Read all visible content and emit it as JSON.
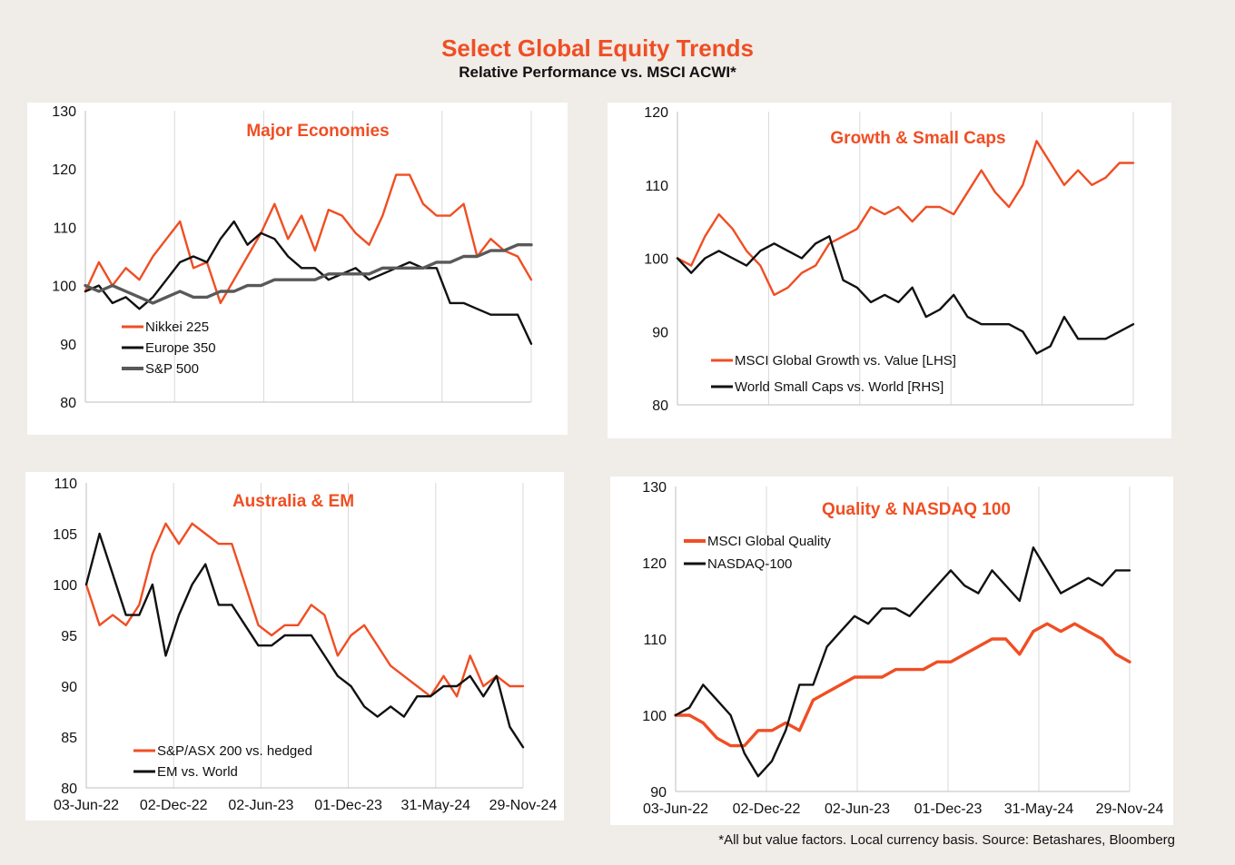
{
  "header": {
    "title": "Select Global Equity Trends",
    "subtitle": "Relative Performance vs. MSCI ACWI*"
  },
  "footnote": "*All but value factors. Local currency basis.  Source: Betashares, Bloomberg",
  "x_tick_labels": [
    "03-Jun-22",
    "02-Dec-22",
    "02-Jun-23",
    "01-Dec-23",
    "31-May-24",
    "29-Nov-24"
  ],
  "colors": {
    "orange": "#f04e23",
    "black": "#111111",
    "gray": "#595959",
    "grid": "#d9d9d9"
  },
  "chart_data": [
    {
      "type": "line",
      "title": "Major Economies",
      "x": [
        "03-Jun-22",
        "01-Jul-22",
        "29-Jul-22",
        "26-Aug-22",
        "23-Sep-22",
        "21-Oct-22",
        "18-Nov-22",
        "16-Dec-22",
        "13-Jan-23",
        "10-Feb-23",
        "10-Mar-23",
        "07-Apr-23",
        "05-May-23",
        "02-Jun-23",
        "30-Jun-23",
        "28-Jul-23",
        "25-Aug-23",
        "22-Sep-23",
        "20-Oct-23",
        "17-Nov-23",
        "15-Dec-23",
        "12-Jan-24",
        "09-Feb-24",
        "08-Mar-24",
        "05-Apr-24",
        "03-May-24",
        "31-May-24",
        "28-Jun-24",
        "26-Jul-24",
        "23-Aug-24",
        "20-Sep-24",
        "18-Oct-24",
        "15-Nov-24",
        "29-Nov-24"
      ],
      "ylim": [
        80,
        130
      ],
      "yticks": [
        80,
        90,
        100,
        110,
        120,
        130
      ],
      "series": [
        {
          "name": "Nikkei 225",
          "color": "#f04e23",
          "width": 2.4,
          "values": [
            99,
            104,
            100,
            103,
            101,
            105,
            108,
            111,
            103,
            104,
            97,
            101,
            105,
            109,
            114,
            108,
            112,
            106,
            113,
            112,
            109,
            107,
            112,
            119,
            119,
            114,
            112,
            112,
            114,
            105,
            108,
            106,
            105,
            101
          ]
        },
        {
          "name": "Europe 350",
          "color": "#111111",
          "width": 2.4,
          "values": [
            99,
            100,
            97,
            98,
            96,
            98,
            101,
            104,
            105,
            104,
            108,
            111,
            107,
            109,
            108,
            105,
            103,
            103,
            101,
            102,
            103,
            101,
            102,
            103,
            104,
            103,
            103,
            97,
            97,
            96,
            95,
            95,
            95,
            90
          ]
        },
        {
          "name": "S&P 500",
          "color": "#595959",
          "width": 3.4,
          "values": [
            100,
            99,
            100,
            99,
            98,
            97,
            98,
            99,
            98,
            98,
            99,
            99,
            100,
            100,
            101,
            101,
            101,
            101,
            102,
            102,
            102,
            102,
            103,
            103,
            103,
            103,
            104,
            104,
            105,
            105,
            106,
            106,
            107,
            107
          ]
        }
      ]
    },
    {
      "type": "line",
      "title": "Growth & Small Caps",
      "x": [
        "03-Jun-22",
        "01-Jul-22",
        "29-Jul-22",
        "26-Aug-22",
        "23-Sep-22",
        "21-Oct-22",
        "18-Nov-22",
        "16-Dec-22",
        "13-Jan-23",
        "10-Feb-23",
        "10-Mar-23",
        "07-Apr-23",
        "05-May-23",
        "02-Jun-23",
        "30-Jun-23",
        "28-Jul-23",
        "25-Aug-23",
        "22-Sep-23",
        "20-Oct-23",
        "17-Nov-23",
        "15-Dec-23",
        "12-Jan-24",
        "09-Feb-24",
        "08-Mar-24",
        "05-Apr-24",
        "03-May-24",
        "31-May-24",
        "28-Jun-24",
        "26-Jul-24",
        "23-Aug-24",
        "20-Sep-24",
        "18-Oct-24",
        "15-Nov-24",
        "29-Nov-24"
      ],
      "ylim": [
        80,
        120
      ],
      "yticks": [
        80,
        90,
        100,
        110,
        120
      ],
      "series": [
        {
          "name": "MSCI Global Growth vs. Value [LHS]",
          "color": "#f04e23",
          "width": 2.4,
          "values": [
            100,
            99,
            103,
            106,
            104,
            101,
            99,
            95,
            96,
            98,
            99,
            102,
            103,
            104,
            107,
            106,
            107,
            105,
            107,
            107,
            106,
            109,
            112,
            109,
            107,
            110,
            116,
            113,
            110,
            112,
            110,
            111,
            113,
            113
          ]
        },
        {
          "name": "World Small Caps vs. World [RHS]",
          "color": "#111111",
          "width": 2.4,
          "values": [
            100,
            98,
            100,
            101,
            100,
            99,
            101,
            102,
            101,
            100,
            102,
            103,
            97,
            96,
            94,
            95,
            94,
            96,
            92,
            93,
            95,
            92,
            91,
            91,
            91,
            90,
            87,
            88,
            92,
            89,
            89,
            89,
            90,
            91
          ]
        }
      ]
    },
    {
      "type": "line",
      "title": "Australia & EM",
      "x": [
        "03-Jun-22",
        "01-Jul-22",
        "29-Jul-22",
        "26-Aug-22",
        "23-Sep-22",
        "21-Oct-22",
        "18-Nov-22",
        "16-Dec-22",
        "13-Jan-23",
        "10-Feb-23",
        "10-Mar-23",
        "07-Apr-23",
        "05-May-23",
        "02-Jun-23",
        "30-Jun-23",
        "28-Jul-23",
        "25-Aug-23",
        "22-Sep-23",
        "20-Oct-23",
        "17-Nov-23",
        "15-Dec-23",
        "12-Jan-24",
        "09-Feb-24",
        "08-Mar-24",
        "05-Apr-24",
        "03-May-24",
        "31-May-24",
        "28-Jun-24",
        "26-Jul-24",
        "23-Aug-24",
        "20-Sep-24",
        "18-Oct-24",
        "15-Nov-24",
        "29-Nov-24"
      ],
      "ylim": [
        80,
        110
      ],
      "yticks": [
        80,
        85,
        90,
        95,
        100,
        105,
        110
      ],
      "series": [
        {
          "name": "S&P/ASX 200 vs. hedged",
          "color": "#f04e23",
          "width": 2.4,
          "values": [
            100,
            96,
            97,
            96,
            98,
            103,
            106,
            104,
            106,
            105,
            104,
            104,
            100,
            96,
            95,
            96,
            96,
            98,
            97,
            93,
            95,
            96,
            94,
            92,
            91,
            90,
            89,
            91,
            89,
            93,
            90,
            91,
            90,
            90
          ]
        },
        {
          "name": "EM vs. World",
          "color": "#111111",
          "width": 2.4,
          "values": [
            100,
            105,
            101,
            97,
            97,
            100,
            93,
            97,
            100,
            102,
            98,
            98,
            96,
            94,
            94,
            95,
            95,
            95,
            93,
            91,
            90,
            88,
            87,
            88,
            87,
            89,
            89,
            90,
            90,
            91,
            89,
            91,
            86,
            84
          ]
        }
      ]
    },
    {
      "type": "line",
      "title": "Quality & NASDAQ 100",
      "x": [
        "03-Jun-22",
        "01-Jul-22",
        "29-Jul-22",
        "26-Aug-22",
        "23-Sep-22",
        "21-Oct-22",
        "18-Nov-22",
        "16-Dec-22",
        "13-Jan-23",
        "10-Feb-23",
        "10-Mar-23",
        "07-Apr-23",
        "05-May-23",
        "02-Jun-23",
        "30-Jun-23",
        "28-Jul-23",
        "25-Aug-23",
        "22-Sep-23",
        "20-Oct-23",
        "17-Nov-23",
        "15-Dec-23",
        "12-Jan-24",
        "09-Feb-24",
        "08-Mar-24",
        "05-Apr-24",
        "03-May-24",
        "31-May-24",
        "28-Jun-24",
        "26-Jul-24",
        "23-Aug-24",
        "20-Sep-24",
        "18-Oct-24",
        "15-Nov-24",
        "29-Nov-24"
      ],
      "ylim": [
        90,
        130
      ],
      "yticks": [
        90,
        100,
        110,
        120,
        130
      ],
      "series": [
        {
          "name": "MSCI Global Quality",
          "color": "#f04e23",
          "width": 3.4,
          "values": [
            100,
            100,
            99,
            97,
            96,
            96,
            98,
            98,
            99,
            98,
            102,
            103,
            104,
            105,
            105,
            105,
            106,
            106,
            106,
            107,
            107,
            108,
            109,
            110,
            110,
            108,
            111,
            112,
            111,
            112,
            111,
            110,
            108,
            107
          ]
        },
        {
          "name": "NASDAQ-100",
          "color": "#111111",
          "width": 2.4,
          "values": [
            100,
            101,
            104,
            102,
            100,
            95,
            92,
            94,
            98,
            104,
            104,
            109,
            111,
            113,
            112,
            114,
            114,
            113,
            115,
            117,
            119,
            117,
            116,
            119,
            117,
            115,
            122,
            119,
            116,
            117,
            118,
            117,
            119,
            119
          ]
        }
      ]
    }
  ]
}
